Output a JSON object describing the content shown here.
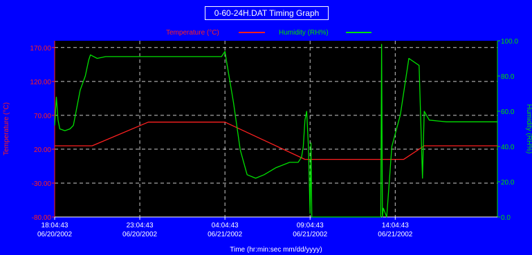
{
  "colors": {
    "background": "#0000ff",
    "plot_area": "#000000",
    "temperature": "#ff2020",
    "humidity": "#00e000",
    "grid": "#ffffff",
    "text": "#ffffff"
  },
  "chart_data": {
    "type": "line",
    "title": "0-60-24H.DAT Timing Graph",
    "xlabel": "Time (hr:min:sec mm/dd/yyyy)",
    "y_left_label": "Temperature (°C)",
    "y_right_label": "Humidity (RH%)",
    "x_range_hours": [
      0,
      26
    ],
    "x_ticks": [
      {
        "hour": 0,
        "time": "18:04:43",
        "date": "06/20/2002"
      },
      {
        "hour": 5,
        "time": "23:04:43",
        "date": "06/20/2002"
      },
      {
        "hour": 10,
        "time": "04:04:43",
        "date": "06/21/2002"
      },
      {
        "hour": 15,
        "time": "09:04:43",
        "date": "06/21/2002"
      },
      {
        "hour": 20,
        "time": "14:04:43",
        "date": "06/21/2002"
      }
    ],
    "y_left_range": [
      -80,
      180
    ],
    "y_left_ticks": [
      "170.00",
      "120.00",
      "70.00",
      "20.00",
      "-30.00",
      "-80.00"
    ],
    "y_left_tick_values": [
      170,
      120,
      70,
      20,
      -30,
      -80
    ],
    "y_right_range": [
      0,
      100
    ],
    "y_right_ticks": [
      "100.0",
      "80.0",
      "60.0",
      "40.0",
      "20.0",
      "0.0"
    ],
    "y_right_tick_values": [
      100,
      80,
      60,
      40,
      20,
      0
    ],
    "grid": true,
    "legend": {
      "placement": "top",
      "items": [
        {
          "label": "Temperature (°C)",
          "series": "temperature"
        },
        {
          "label": "Humidity (RH%)",
          "series": "humidity"
        }
      ]
    },
    "series": [
      {
        "name": "Temperature (°C)",
        "axis": "left",
        "points": [
          [
            0,
            25
          ],
          [
            2.2,
            25
          ],
          [
            5.5,
            60
          ],
          [
            10,
            60
          ],
          [
            14.7,
            5
          ],
          [
            20.5,
            5
          ],
          [
            21.7,
            25
          ],
          [
            26,
            25
          ]
        ]
      },
      {
        "name": "Humidity (RH%)",
        "axis": "right",
        "points": [
          [
            0,
            52
          ],
          [
            0.1,
            68
          ],
          [
            0.2,
            55
          ],
          [
            0.3,
            50
          ],
          [
            0.6,
            49
          ],
          [
            0.9,
            50
          ],
          [
            1.1,
            52
          ],
          [
            1.3,
            62
          ],
          [
            1.5,
            72
          ],
          [
            1.8,
            80
          ],
          [
            2.0,
            89
          ],
          [
            2.1,
            92
          ],
          [
            2.5,
            90
          ],
          [
            3.0,
            91
          ],
          [
            4,
            91
          ],
          [
            6,
            91
          ],
          [
            8,
            91
          ],
          [
            9.8,
            91
          ],
          [
            10.0,
            94
          ],
          [
            10.1,
            88
          ],
          [
            10.5,
            65
          ],
          [
            10.9,
            38
          ],
          [
            11.3,
            24
          ],
          [
            11.8,
            22
          ],
          [
            12.3,
            24
          ],
          [
            13.0,
            28
          ],
          [
            13.8,
            31
          ],
          [
            14.3,
            31
          ],
          [
            14.5,
            34
          ],
          [
            14.6,
            40
          ],
          [
            14.7,
            55
          ],
          [
            14.8,
            60
          ],
          [
            14.9,
            40
          ],
          [
            15.0,
            2
          ],
          [
            15.05,
            42
          ],
          [
            15.1,
            0
          ],
          [
            19.15,
            0
          ],
          [
            19.2,
            98
          ],
          [
            19.25,
            0
          ],
          [
            19.3,
            5
          ],
          [
            19.5,
            0
          ],
          [
            19.8,
            40
          ],
          [
            20.3,
            58
          ],
          [
            20.8,
            90
          ],
          [
            21.4,
            86
          ],
          [
            21.6,
            22
          ],
          [
            21.7,
            60
          ],
          [
            22,
            55
          ],
          [
            23,
            54
          ],
          [
            26,
            54
          ]
        ]
      }
    ]
  }
}
